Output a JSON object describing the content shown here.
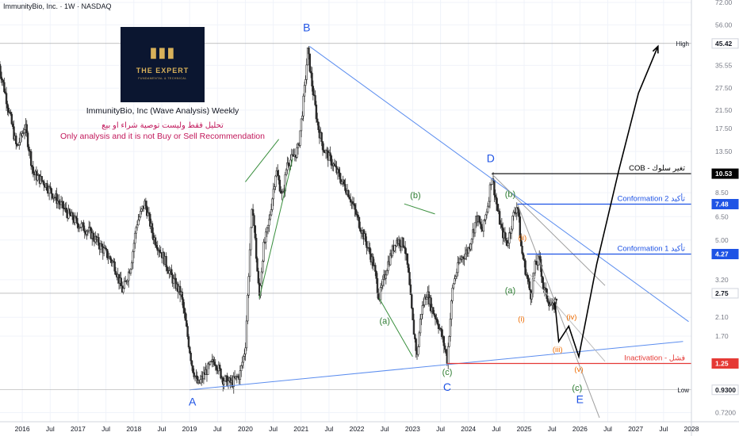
{
  "header": {
    "symbol_line": "ImmunityBio, Inc. · 1W · NASDAQ"
  },
  "logo": {
    "title": "THE EXPERT",
    "subtitle": "FUNDAMENTAL & TECHNICAL"
  },
  "info": {
    "title": "ImmunityBio, Inc (Wave Analysis) Weekly",
    "arabic_note": "تحليل فقط وليست توصية شراء او بيع",
    "disclaimer": "Only analysis and it is not Buy or Sell Recommendation"
  },
  "chart_data": {
    "type": "candlestick",
    "scale": "log",
    "x_ticks": [
      "2016",
      "Jul",
      "2017",
      "Jul",
      "2018",
      "Jul",
      "2019",
      "Jul",
      "2020",
      "Jul",
      "2021",
      "Jul",
      "2022",
      "Jul",
      "2023",
      "Jul",
      "2024",
      "Jul",
      "2025",
      "Jul",
      "2026",
      "Jul",
      "2027",
      "Jul",
      "2028"
    ],
    "y_ticks": [
      72.0,
      56.0,
      35.55,
      27.5,
      21.5,
      17.5,
      13.5,
      8.5,
      6.5,
      5.0,
      3.2,
      2.1,
      1.7,
      0.72
    ],
    "x_range": [
      2015.6,
      2028.0
    ],
    "y_range": [
      0.65,
      74
    ],
    "price_path": [
      [
        2015.58,
        36.0
      ],
      [
        2015.75,
        22.0
      ],
      [
        2015.9,
        14.0
      ],
      [
        2016.05,
        18.0
      ],
      [
        2016.2,
        10.5
      ],
      [
        2016.4,
        9.5
      ],
      [
        2016.6,
        8.0
      ],
      [
        2016.8,
        6.8
      ],
      [
        2017.0,
        6.0
      ],
      [
        2017.2,
        5.5
      ],
      [
        2017.45,
        4.5
      ],
      [
        2017.65,
        3.8
      ],
      [
        2017.8,
        2.8
      ],
      [
        2017.95,
        3.8
      ],
      [
        2018.05,
        6.0
      ],
      [
        2018.2,
        7.6
      ],
      [
        2018.35,
        5.2
      ],
      [
        2018.5,
        4.3
      ],
      [
        2018.7,
        3.2
      ],
      [
        2018.85,
        2.7
      ],
      [
        2018.95,
        1.8
      ],
      [
        2019.05,
        1.2
      ],
      [
        2019.15,
        0.98
      ],
      [
        2019.3,
        1.15
      ],
      [
        2019.45,
        1.3
      ],
      [
        2019.6,
        1.05
      ],
      [
        2019.75,
        1.0
      ],
      [
        2019.9,
        1.1
      ],
      [
        2020.0,
        1.5
      ],
      [
        2020.08,
        4.5
      ],
      [
        2020.13,
        7.5
      ],
      [
        2020.2,
        4.0
      ],
      [
        2020.25,
        2.6
      ],
      [
        2020.32,
        4.5
      ],
      [
        2020.42,
        6.0
      ],
      [
        2020.55,
        11.0
      ],
      [
        2020.67,
        8.0
      ],
      [
        2020.75,
        12.0
      ],
      [
        2020.85,
        12.5
      ],
      [
        2020.95,
        14.0
      ],
      [
        2021.05,
        25.0
      ],
      [
        2021.12,
        42.0
      ],
      [
        2021.2,
        28.0
      ],
      [
        2021.3,
        18.0
      ],
      [
        2021.4,
        14.0
      ],
      [
        2021.55,
        12.0
      ],
      [
        2021.7,
        10.0
      ],
      [
        2021.85,
        8.5
      ],
      [
        2022.0,
        6.5
      ],
      [
        2022.15,
        5.0
      ],
      [
        2022.3,
        3.8
      ],
      [
        2022.4,
        2.6
      ],
      [
        2022.55,
        3.8
      ],
      [
        2022.7,
        5.0
      ],
      [
        2022.85,
        4.8
      ],
      [
        2022.92,
        3.5
      ],
      [
        2023.0,
        2.0
      ],
      [
        2023.08,
        1.35
      ],
      [
        2023.15,
        2.2
      ],
      [
        2023.25,
        2.8
      ],
      [
        2023.35,
        2.3
      ],
      [
        2023.45,
        2.0
      ],
      [
        2023.55,
        1.6
      ],
      [
        2023.62,
        1.3
      ],
      [
        2023.72,
        3.0
      ],
      [
        2023.85,
        4.0
      ],
      [
        2024.0,
        4.5
      ],
      [
        2024.15,
        6.5
      ],
      [
        2024.25,
        5.5
      ],
      [
        2024.35,
        7.5
      ],
      [
        2024.42,
        10.5
      ],
      [
        2024.52,
        7.0
      ],
      [
        2024.6,
        5.5
      ],
      [
        2024.7,
        4.8
      ],
      [
        2024.8,
        6.5
      ],
      [
        2024.88,
        7.5
      ],
      [
        2024.95,
        4.5
      ],
      [
        2025.05,
        3.3
      ],
      [
        2025.12,
        2.7
      ],
      [
        2025.2,
        3.8
      ],
      [
        2025.28,
        4.0
      ],
      [
        2025.35,
        2.9
      ],
      [
        2025.45,
        2.5
      ],
      [
        2025.52,
        2.3
      ],
      [
        2025.58,
        2.6
      ]
    ],
    "horizontal_levels": [
      {
        "label": "High",
        "price_label": "45.42",
        "value": 45.42,
        "color": "#9e9e9e"
      },
      {
        "label": "COB - تغير سلوك",
        "price_label": "10.53",
        "value": 10.53,
        "color": "#000000"
      },
      {
        "label": "Conformation 2 تأكيد",
        "price_label": "7.48",
        "value": 7.48,
        "color": "#1e53e5"
      },
      {
        "label": "Conformation 1 تأكيد",
        "price_label": "4.27",
        "value": 4.27,
        "color": "#1e53e5"
      },
      {
        "label": "",
        "price_label": "2.75",
        "value": 2.75,
        "color": "#9e9e9e"
      },
      {
        "label": "Inactivation - فشل",
        "price_label": "1.25",
        "value": 1.25,
        "color": "#e53935"
      },
      {
        "label": "Low",
        "price_label": "0.9300",
        "value": 0.93,
        "color": "#9e9e9e"
      }
    ],
    "trendlines": [
      {
        "from": [
          2021.15,
          44.0
        ],
        "to": [
          2027.95,
          2.0
        ],
        "color": "#5b8def"
      },
      {
        "from": [
          2019.0,
          0.93
        ],
        "to": [
          2027.85,
          1.6
        ],
        "color": "#5b8def"
      },
      {
        "from": [
          2024.42,
          10.5
        ],
        "to": [
          2026.45,
          3.0
        ],
        "color": "#9e9e9e"
      },
      {
        "from": [
          2024.88,
          7.5
        ],
        "to": [
          2026.35,
          0.68
        ],
        "color": "#9e9e9e"
      },
      {
        "from": [
          2025.1,
          3.4
        ],
        "to": [
          2026.45,
          1.28
        ],
        "color": "#bdbdbd"
      },
      {
        "from": [
          2020.0,
          9.6
        ],
        "to": [
          2020.6,
          15.5
        ],
        "color": "#388e3c"
      },
      {
        "from": [
          2020.25,
          2.6
        ],
        "to": [
          2020.85,
          12.5
        ],
        "color": "#388e3c"
      },
      {
        "from": [
          2022.4,
          2.6
        ],
        "to": [
          2023.0,
          1.35
        ],
        "color": "#388e3c"
      },
      {
        "from": [
          2022.85,
          7.5
        ],
        "to": [
          2023.4,
          6.7
        ],
        "color": "#388e3c"
      }
    ],
    "projection_path": [
      [
        2025.55,
        2.5
      ],
      [
        2025.62,
        1.6
      ],
      [
        2025.8,
        1.9
      ],
      [
        2025.98,
        1.35
      ],
      [
        2026.3,
        3.8
      ],
      [
        2026.7,
        11.0
      ],
      [
        2027.05,
        26.0
      ],
      [
        2027.4,
        44.0
      ]
    ],
    "wave_labels": [
      {
        "text": "A",
        "x": 2019.05,
        "y": 0.78,
        "color": "#1e53e5",
        "size": "large"
      },
      {
        "text": "B",
        "x": 2021.1,
        "y": 52.0,
        "color": "#1e53e5",
        "size": "large"
      },
      {
        "text": "C",
        "x": 2023.62,
        "y": 0.92,
        "color": "#1e53e5",
        "size": "large"
      },
      {
        "text": "D",
        "x": 2024.4,
        "y": 12.0,
        "color": "#1e53e5",
        "size": "large"
      },
      {
        "text": "E",
        "x": 2026.0,
        "y": 0.8,
        "color": "#1e53e5",
        "size": "large"
      },
      {
        "text": "(a)",
        "x": 2022.5,
        "y": 1.95,
        "color": "#2e7d32",
        "size": "medium"
      },
      {
        "text": "(b)",
        "x": 2023.05,
        "y": 8.0,
        "color": "#2e7d32",
        "size": "medium"
      },
      {
        "text": "(c)",
        "x": 2023.62,
        "y": 1.1,
        "color": "#2e7d32",
        "size": "medium"
      },
      {
        "text": "(b)",
        "x": 2024.75,
        "y": 8.1,
        "color": "#2e7d32",
        "size": "medium"
      },
      {
        "text": "(a)",
        "x": 2024.75,
        "y": 2.75,
        "color": "#2e7d32",
        "size": "medium"
      },
      {
        "text": "(c)",
        "x": 2025.95,
        "y": 0.92,
        "color": "#2e7d32",
        "size": "medium"
      },
      {
        "text": "(ii)",
        "x": 2024.97,
        "y": 5.0,
        "color": "#ef6c00",
        "size": "small"
      },
      {
        "text": "(i)",
        "x": 2024.95,
        "y": 2.0,
        "color": "#ef6c00",
        "size": "small"
      },
      {
        "text": "(iii)",
        "x": 2025.6,
        "y": 1.42,
        "color": "#ef6c00",
        "size": "small"
      },
      {
        "text": "(iv)",
        "x": 2025.85,
        "y": 2.05,
        "color": "#ef6c00",
        "size": "small"
      },
      {
        "text": "(v)",
        "x": 2025.98,
        "y": 1.14,
        "color": "#ef6c00",
        "size": "small"
      }
    ]
  }
}
